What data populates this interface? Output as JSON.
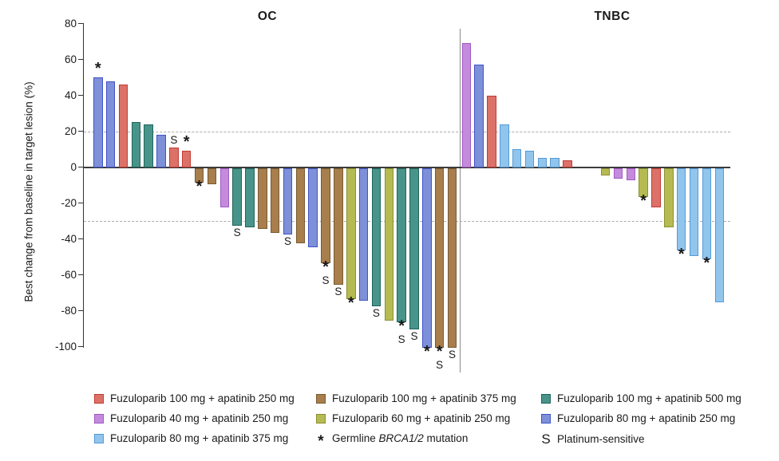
{
  "chart_data": {
    "type": "bar",
    "subtype": "waterfall",
    "ylabel": "Best change from baseline in target lesion (%)",
    "ylim": [
      -100,
      80
    ],
    "yticks": [
      80,
      60,
      40,
      20,
      0,
      -20,
      -40,
      -60,
      -80,
      -100
    ],
    "reference_lines": [
      20,
      -30
    ],
    "grid": "dashed-reference-only",
    "groups": {
      "f100a250": {
        "label": "Fuzuloparib 100 mg + apatinib 250 mg",
        "fill": "#DC7168",
        "border": "#C23B35"
      },
      "f100a375": {
        "label": "Fuzuloparib 100 mg + apatinib 375 mg",
        "fill": "#A87E4D",
        "border": "#7A5A30"
      },
      "f100a500": {
        "label": "Fuzuloparib 100 mg + apatinib 500 mg",
        "fill": "#48948A",
        "border": "#1F655B"
      },
      "f40a250": {
        "label": "Fuzuloparib 40 mg + apatinib 250 mg",
        "fill": "#C48BDC",
        "border": "#A159C4"
      },
      "f60a250": {
        "label": "Fuzuloparib 60 mg + apatinib 250 mg",
        "fill": "#B5BB52",
        "border": "#8A9130"
      },
      "f80a250": {
        "label": "Fuzuloparib 80 mg + apatinib 250 mg",
        "fill": "#7E90D7",
        "border": "#4153C8"
      },
      "f80a375": {
        "label": "Fuzuloparib 80 mg + apatinib 375 mg",
        "fill": "#92C5EC",
        "border": "#539BD8"
      }
    },
    "markers": {
      "asterisk": {
        "symbol": "*",
        "label_pre": "Germline ",
        "label_em": "BRCA1/2",
        "label_post": " mutation"
      },
      "s": {
        "symbol": "S",
        "label": "Platinum-sensitive"
      }
    },
    "panels": [
      {
        "name": "OC",
        "bars": [
          {
            "v": 50,
            "g": "f80a250",
            "m": [
              "*"
            ]
          },
          {
            "v": 48,
            "g": "f80a250"
          },
          {
            "v": 46,
            "g": "f100a250"
          },
          {
            "v": 25,
            "g": "f100a500"
          },
          {
            "v": 24,
            "g": "f100a500"
          },
          {
            "v": 18,
            "g": "f80a250"
          },
          {
            "v": 11,
            "g": "f100a250",
            "m": [
              "S"
            ]
          },
          {
            "v": 9,
            "g": "f100a250",
            "m": [
              "*"
            ]
          },
          {
            "v": -8,
            "g": "f100a375",
            "m": [
              "*"
            ]
          },
          {
            "v": -9,
            "g": "f100a375"
          },
          {
            "v": -22,
            "g": "f40a250"
          },
          {
            "v": -32,
            "g": "f100a500",
            "m": [
              "S"
            ]
          },
          {
            "v": -33,
            "g": "f100a500"
          },
          {
            "v": -34,
            "g": "f100a375"
          },
          {
            "v": -36,
            "g": "f100a375"
          },
          {
            "v": -37,
            "g": "f80a250",
            "m": [
              "S"
            ]
          },
          {
            "v": -42,
            "g": "f100a375"
          },
          {
            "v": -44,
            "g": "f80a250"
          },
          {
            "v": -53,
            "g": "f100a375",
            "m": [
              "*",
              "S"
            ]
          },
          {
            "v": -65,
            "g": "f100a375",
            "m": [
              "S"
            ]
          },
          {
            "v": -73,
            "g": "f60a250",
            "m": [
              "*"
            ]
          },
          {
            "v": -74,
            "g": "f80a250"
          },
          {
            "v": -77,
            "g": "f100a500",
            "m": [
              "S"
            ]
          },
          {
            "v": -85,
            "g": "f60a250"
          },
          {
            "v": -86,
            "g": "f100a500",
            "m": [
              "*",
              "S"
            ]
          },
          {
            "v": -90,
            "g": "f100a500",
            "m": [
              "S"
            ]
          },
          {
            "v": -100,
            "g": "f80a250",
            "m": [
              "*"
            ]
          },
          {
            "v": -100,
            "g": "f100a375",
            "m": [
              "*",
              "S"
            ]
          },
          {
            "v": -100,
            "g": "f100a375",
            "m": [
              "S"
            ]
          }
        ]
      },
      {
        "name": "TNBC",
        "bars": [
          {
            "v": 69,
            "g": "f40a250",
            "slot": 0
          },
          {
            "v": 57,
            "g": "f80a250",
            "slot": 1
          },
          {
            "v": 40,
            "g": "f100a250",
            "slot": 2
          },
          {
            "v": 24,
            "g": "f80a375",
            "slot": 3
          },
          {
            "v": 10,
            "g": "f80a375",
            "slot": 4
          },
          {
            "v": 9,
            "g": "f80a375",
            "slot": 5
          },
          {
            "v": 5,
            "g": "f80a375",
            "slot": 6
          },
          {
            "v": 5,
            "g": "f80a375",
            "slot": 7
          },
          {
            "v": 4,
            "g": "f100a250",
            "slot": 8
          },
          {
            "v": -4,
            "g": "f60a250",
            "slot": 11
          },
          {
            "v": -6,
            "g": "f40a250",
            "slot": 12
          },
          {
            "v": -7,
            "g": "f40a250",
            "slot": 13
          },
          {
            "v": -16,
            "g": "f60a250",
            "slot": 14,
            "m": [
              "*"
            ]
          },
          {
            "v": -22,
            "g": "f100a250",
            "slot": 15
          },
          {
            "v": -33,
            "g": "f60a250",
            "slot": 16
          },
          {
            "v": -46,
            "g": "f80a375",
            "slot": 17,
            "m": [
              "*"
            ]
          },
          {
            "v": -49,
            "g": "f80a375",
            "slot": 18
          },
          {
            "v": -51,
            "g": "f80a375",
            "slot": 19,
            "m": [
              "*"
            ]
          },
          {
            "v": -75,
            "g": "f80a375",
            "slot": 20
          }
        ]
      }
    ],
    "legend": {
      "columns": [
        [
          {
            "swatch": "f100a250"
          },
          {
            "swatch": "f40a250"
          },
          {
            "swatch": "f80a375"
          }
        ],
        [
          {
            "swatch": "f100a375"
          },
          {
            "swatch": "f60a250"
          },
          {
            "marker": "asterisk"
          }
        ],
        [
          {
            "swatch": "f100a500"
          },
          {
            "swatch": "f80a250"
          },
          {
            "marker": "s"
          }
        ]
      ]
    }
  }
}
